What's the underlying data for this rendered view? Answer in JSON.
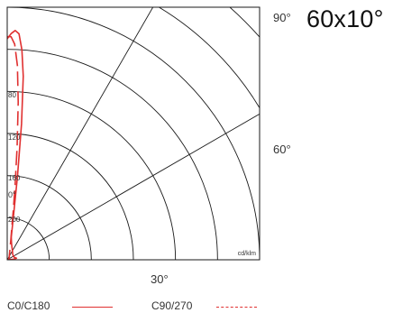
{
  "chart_data": {
    "type": "line",
    "subtype": "polar-light-distribution",
    "title": "60x10°",
    "unit_label": "cd/klm",
    "angle_labels": [
      "90°",
      "60°",
      "30°"
    ],
    "radial_ticks": [
      "0°",
      "80",
      "120",
      "160",
      "200"
    ],
    "radial_values": [
      80,
      120,
      160,
      200
    ],
    "rlim": [
      0,
      240
    ],
    "series": [
      {
        "name": "C0/C180",
        "style": "solid",
        "color": "#e03030",
        "points": [
          [
            0,
            210
          ],
          [
            1,
            215
          ],
          [
            2,
            218
          ],
          [
            3,
            215
          ],
          [
            4,
            200
          ],
          [
            5,
            175
          ],
          [
            6,
            130
          ],
          [
            7,
            80
          ],
          [
            8,
            45
          ],
          [
            9,
            30
          ],
          [
            10,
            22
          ],
          [
            15,
            16
          ],
          [
            20,
            13
          ],
          [
            30,
            10
          ],
          [
            40,
            8
          ],
          [
            50,
            7
          ],
          [
            60,
            7
          ],
          [
            70,
            7
          ],
          [
            80,
            9
          ],
          [
            85,
            6
          ],
          [
            90,
            0
          ]
        ]
      },
      {
        "name": "C90/270",
        "style": "dashed",
        "color": "#e03030",
        "points": [
          [
            0,
            212
          ],
          [
            1,
            212
          ],
          [
            2,
            205
          ],
          [
            3,
            185
          ],
          [
            4,
            150
          ],
          [
            5,
            108
          ],
          [
            6,
            72
          ],
          [
            7,
            48
          ],
          [
            8,
            32
          ],
          [
            10,
            20
          ],
          [
            15,
            10
          ],
          [
            30,
            4
          ],
          [
            60,
            2
          ],
          [
            90,
            0
          ]
        ]
      }
    ]
  }
}
